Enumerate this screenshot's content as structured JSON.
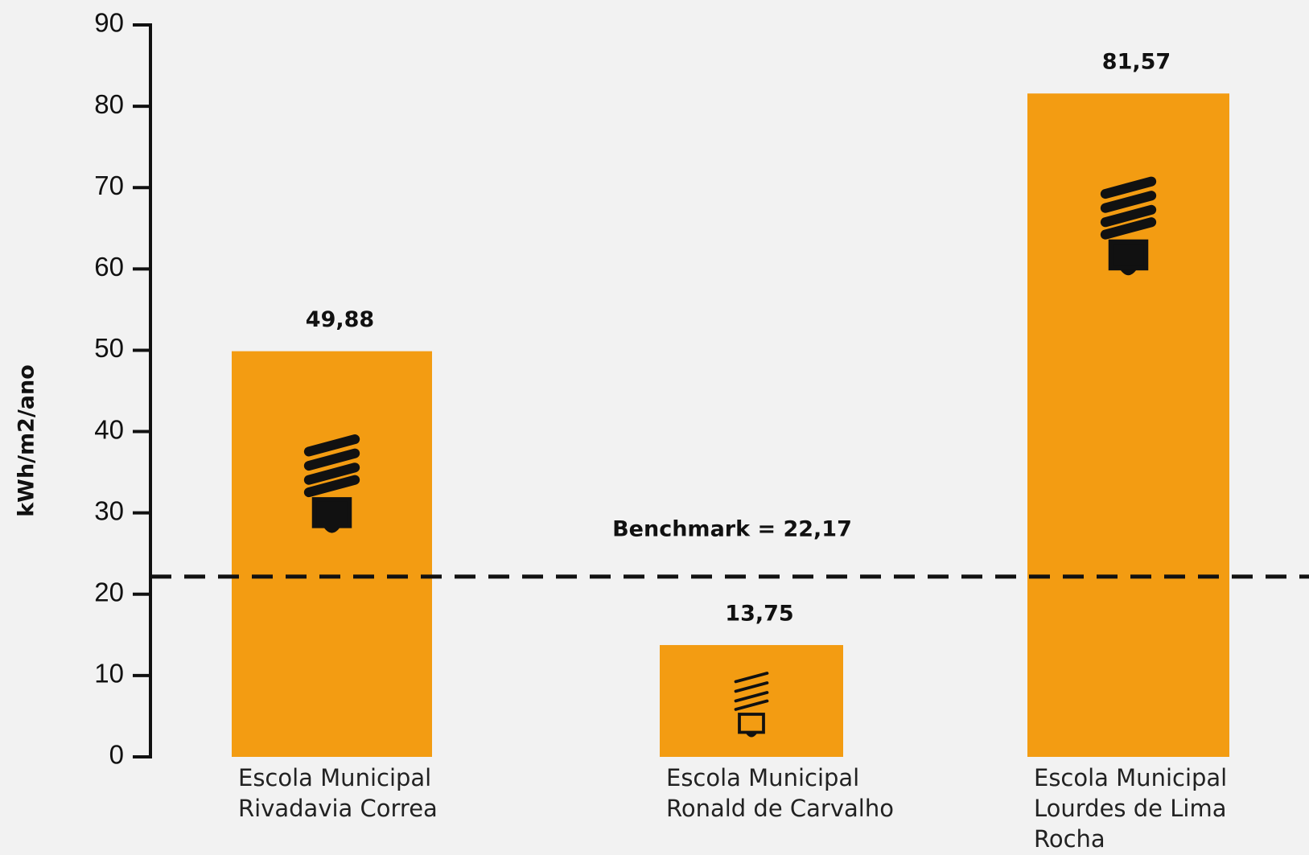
{
  "chart_data": {
    "type": "bar",
    "y_label": "kWh/m2/ano",
    "categories": [
      [
        "Escola Municipal",
        "Rivadavia Correa"
      ],
      [
        "Escola Municipal",
        "Ronald de Carvalho"
      ],
      [
        "Escola Municipal",
        "Lourdes de Lima",
        "Rocha"
      ]
    ],
    "values": [
      49.88,
      13.75,
      81.57
    ],
    "value_labels": [
      "49,88",
      "13,75",
      "81,57"
    ],
    "color": "#f39c12",
    "ylim": [
      0,
      90
    ],
    "yticks": [
      0,
      10,
      20,
      30,
      40,
      50,
      60,
      70,
      80,
      90
    ],
    "benchmark": {
      "value": 22.17,
      "label": "Benchmark = 22,17"
    }
  }
}
